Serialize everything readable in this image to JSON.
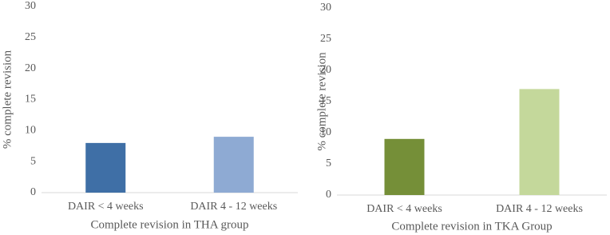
{
  "chart_data": [
    {
      "type": "bar",
      "categories": [
        "DAIR < 4 weeks",
        "DAIR 4 - 12 weeks"
      ],
      "values": [
        8,
        9
      ],
      "colors": [
        "#3f6fa6",
        "#8eaad3"
      ],
      "x_label": "Complete revision in THA group",
      "y_label": "% complete revision",
      "ylim": [
        0,
        30
      ],
      "yticks": [
        0,
        5,
        10,
        15,
        20,
        25,
        30
      ],
      "grid": false
    },
    {
      "type": "bar",
      "categories": [
        "DAIR < 4 weeks",
        "DAIR 4 - 12 weeks"
      ],
      "values": [
        9,
        17
      ],
      "colors": [
        "#758f38",
        "#c4d89b"
      ],
      "x_label": "Complete revision in TKA Group",
      "y_label": "% complete revision",
      "ylim": [
        0,
        30
      ],
      "yticks": [
        0,
        5,
        10,
        15,
        20,
        25,
        30
      ],
      "grid": false
    }
  ]
}
